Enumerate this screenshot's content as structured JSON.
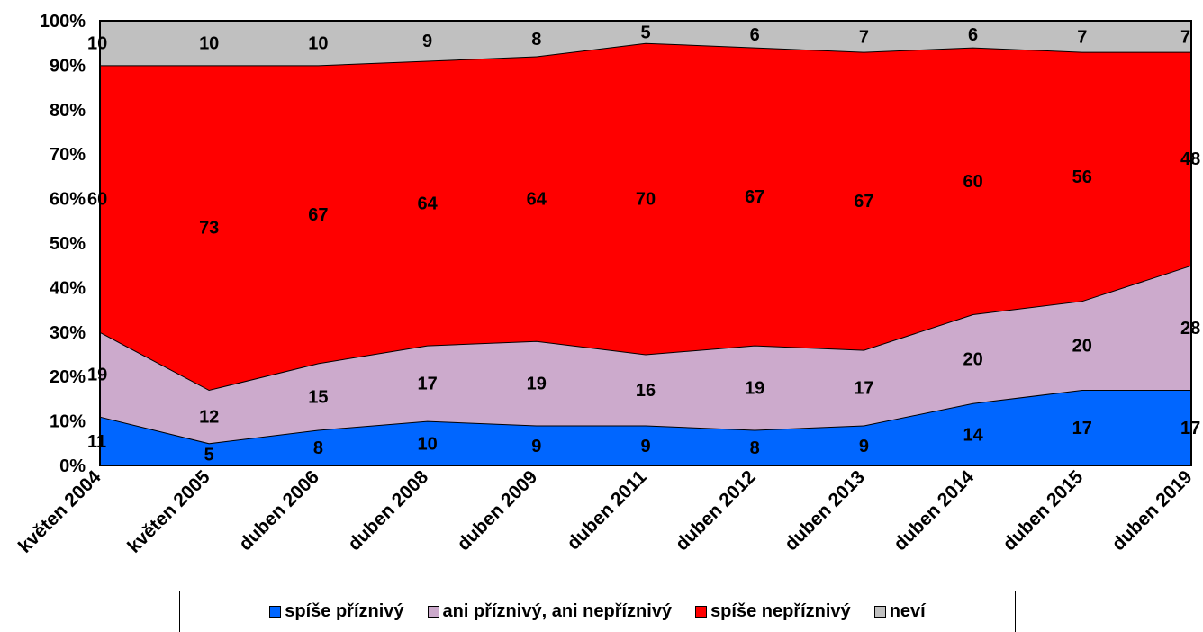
{
  "chart_data": {
    "type": "area",
    "stacked": true,
    "percent": true,
    "categories": [
      "květen 2004",
      "květen 2005",
      "duben 2006",
      "duben 2008",
      "duben 2009",
      "duben 2011",
      "duben 2012",
      "duben 2013",
      "duben 2014",
      "duben 2015",
      "duben 2019"
    ],
    "series": [
      {
        "name": "spíše příznivý",
        "color": "#0066ff",
        "values": [
          11,
          5,
          8,
          10,
          9,
          9,
          8,
          9,
          14,
          17,
          17
        ]
      },
      {
        "name": "ani příznivý, ani nepříznivý",
        "color": "#ccaacc",
        "values": [
          19,
          12,
          15,
          17,
          19,
          16,
          19,
          17,
          20,
          20,
          28
        ]
      },
      {
        "name": "spíše nepříznivý",
        "color": "#ff0000",
        "values": [
          60,
          73,
          67,
          64,
          64,
          70,
          67,
          67,
          60,
          56,
          48
        ]
      },
      {
        "name": "neví",
        "color": "#c0c0c0",
        "values": [
          10,
          10,
          10,
          9,
          8,
          5,
          6,
          7,
          6,
          7,
          7
        ]
      }
    ],
    "y_ticks": [
      "0%",
      "10%",
      "20%",
      "30%",
      "40%",
      "50%",
      "60%",
      "70%",
      "80%",
      "90%",
      "100%"
    ],
    "ylim": [
      0,
      100
    ],
    "grid": false,
    "legend": "bottom"
  }
}
